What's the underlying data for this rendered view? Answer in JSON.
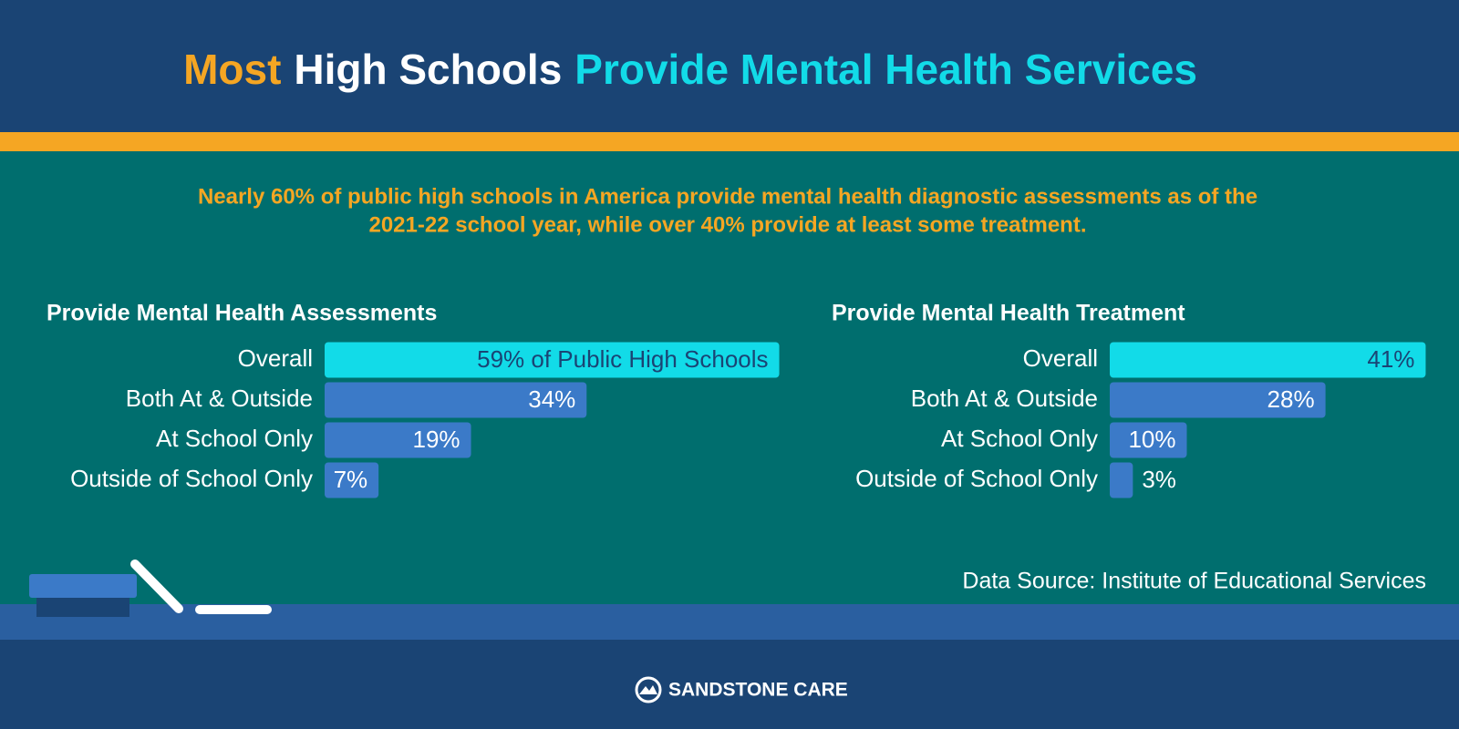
{
  "title_parts": [
    "Most",
    "High Schools",
    "Provide Mental Health Services"
  ],
  "subtitle_lines": [
    "Nearly 60% of public high schools in America provide mental health diagnostic assessments as of the",
    "2021-22 school year, while over 40% provide at least some treatment."
  ],
  "source": "Data Source: Institute of Educational Services",
  "brand": "SANDSTONE CARE",
  "chart_data": [
    {
      "type": "bar",
      "orientation": "horizontal",
      "title": "Provide Mental Health Assessments",
      "categories": [
        "Overall",
        "Both At & Outside",
        "At School Only",
        "Outside of School Only"
      ],
      "values": [
        59,
        34,
        19,
        7
      ],
      "value_labels": [
        "59% of Public High Schools",
        "34%",
        "19%",
        "7%"
      ],
      "colors": [
        "#12dbe8",
        "#3b7ac8",
        "#3b7ac8",
        "#3b7ac8"
      ]
    },
    {
      "type": "bar",
      "orientation": "horizontal",
      "title": "Provide Mental Health Treatment",
      "categories": [
        "Overall",
        "Both At & Outside",
        "At School Only",
        "Outside of School Only"
      ],
      "values": [
        41,
        28,
        10,
        3
      ],
      "value_labels": [
        "41%",
        "28%",
        "10%",
        "3%"
      ],
      "colors": [
        "#12dbe8",
        "#3b7ac8",
        "#3b7ac8",
        "#3b7ac8"
      ]
    }
  ]
}
